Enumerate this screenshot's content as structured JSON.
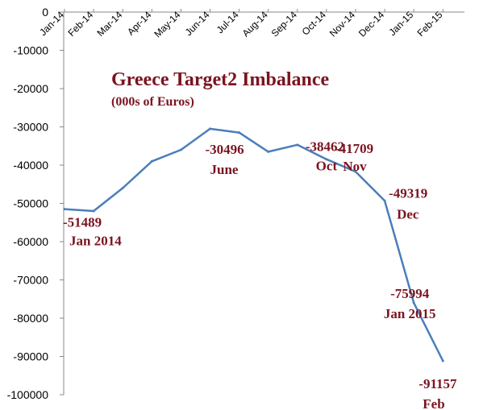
{
  "chart_data": {
    "type": "line",
    "title": "Greece Target2 Imbalance",
    "subtitle": "(000s of Euros)",
    "categories": [
      "Jan-14",
      "Feb-14",
      "Mar-14",
      "Apr-14",
      "May-14",
      "Jun-14",
      "Jul-14",
      "Aug-14",
      "Sep-14",
      "Oct-14",
      "Nov-14",
      "Dec-14",
      "Jan-15",
      "Feb-15"
    ],
    "series": [
      {
        "values": [
          -51489,
          -52000,
          -46000,
          -39000,
          -36000,
          -30496,
          -31500,
          -36500,
          -34700,
          -38462,
          -41709,
          -49319,
          -75994,
          -91157
        ]
      }
    ],
    "ylim": [
      -100000,
      0
    ],
    "yticks": [
      0,
      -10000,
      -20000,
      -30000,
      -40000,
      -50000,
      -60000,
      -70000,
      -80000,
      -90000,
      -100000
    ],
    "x_axis_position": "top",
    "grid": false,
    "legend": "none",
    "line_color": "#4a7ebb",
    "annotation_color": "#7a1420",
    "annotations": [
      {
        "index": 0,
        "value_text": "-51489",
        "label_text": "Jan 2014"
      },
      {
        "index": 5,
        "value_text": "-30496",
        "label_text": "June"
      },
      {
        "index": 9,
        "value_text": "-38462",
        "label_text": "Oct"
      },
      {
        "index": 10,
        "value_text": "-41709",
        "label_text": "Nov"
      },
      {
        "index": 11,
        "value_text": "-49319",
        "label_text": "Dec"
      },
      {
        "index": 12,
        "value_text": "-75994",
        "label_text": "Jan 2015"
      },
      {
        "index": 13,
        "value_text": "-91157",
        "label_text": "Feb"
      }
    ]
  }
}
